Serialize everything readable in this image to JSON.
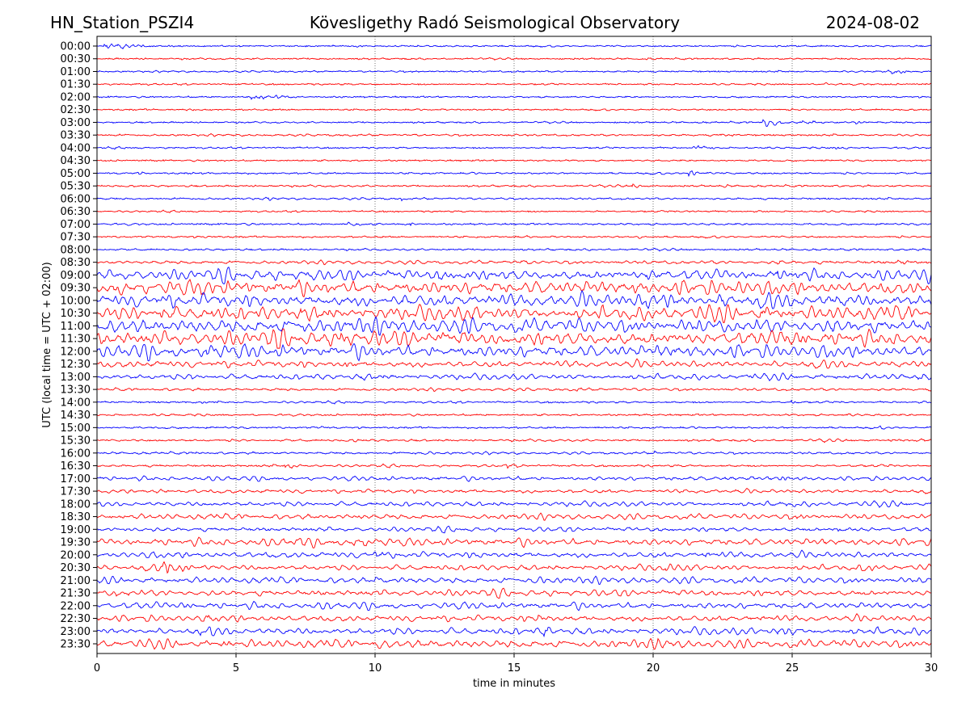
{
  "header": {
    "station": "HN_Station_PSZI4",
    "observatory": "Kövesligethy Radó Seismological Observatory",
    "date": "2024-08-02"
  },
  "chart_data": {
    "type": "line",
    "title": "Kövesligethy Radó Seismological Observatory",
    "xlabel": "time in minutes",
    "ylabel": "UTC (local time = UTC + 02:00)",
    "xlim": [
      0,
      30
    ],
    "xticks": [
      "0",
      "5",
      "10",
      "15",
      "20",
      "25",
      "30"
    ],
    "grid": "vertical dotted at every 5 minutes",
    "colors": {
      "even": "#0000ff",
      "odd": "#ff0000"
    },
    "rows": [
      {
        "label": "00:00",
        "noise": 0.3,
        "events": [
          [
            0.3,
            6,
            1.0
          ],
          [
            24.3,
            2,
            0.5
          ]
        ]
      },
      {
        "label": "00:30",
        "noise": 0.3,
        "events": [
          [
            19.5,
            2,
            1.0
          ],
          [
            24.5,
            1,
            0.6
          ]
        ]
      },
      {
        "label": "01:00",
        "noise": 0.3,
        "events": [
          [
            19.5,
            1,
            0.5
          ],
          [
            28.6,
            7,
            0.8
          ]
        ]
      },
      {
        "label": "01:30",
        "noise": 0.3,
        "events": [
          [
            26.2,
            1.5,
            0.4
          ]
        ]
      },
      {
        "label": "02:00",
        "noise": 0.3,
        "events": [
          [
            5.6,
            5,
            1.5
          ],
          [
            14.2,
            1,
            0.3
          ]
        ]
      },
      {
        "label": "02:30",
        "noise": 0.3,
        "events": [
          [
            3.2,
            1,
            0.4
          ]
        ]
      },
      {
        "label": "03:00",
        "noise": 0.3,
        "events": [
          [
            14.5,
            1.2,
            0.8
          ],
          [
            24.0,
            7,
            1.5
          ],
          [
            27.3,
            1.5,
            0.5
          ]
        ]
      },
      {
        "label": "03:30",
        "noise": 0.4,
        "events": [
          [
            5.8,
            1.5,
            1.0
          ],
          [
            14.5,
            1.5,
            0.6
          ],
          [
            22.5,
            1.5,
            1.0
          ]
        ]
      },
      {
        "label": "04:00",
        "noise": 0.3,
        "events": [
          [
            21.5,
            3,
            1.0
          ],
          [
            26.5,
            3,
            0.8
          ]
        ]
      },
      {
        "label": "04:30",
        "noise": 0.3,
        "events": [
          [
            4.6,
            1,
            0.3
          ],
          [
            26.0,
            2,
            0.3
          ]
        ]
      },
      {
        "label": "05:00",
        "noise": 0.4,
        "events": [
          [
            1.5,
            1.5,
            0.5
          ],
          [
            3.5,
            2,
            0.7
          ],
          [
            21.3,
            4,
            0.6
          ]
        ]
      },
      {
        "label": "05:30",
        "noise": 0.4,
        "events": [
          [
            19.3,
            2,
            0.5
          ],
          [
            22.6,
            1.5,
            0.3
          ]
        ]
      },
      {
        "label": "06:00",
        "noise": 0.4,
        "events": [
          [
            6.2,
            2,
            0.2
          ],
          [
            11.0,
            1.5,
            0.2
          ]
        ]
      },
      {
        "label": "06:30",
        "noise": 0.3,
        "events": [
          [
            20.8,
            1.2,
            1.0
          ]
        ]
      },
      {
        "label": "07:00",
        "noise": 0.4,
        "events": [
          [
            1.1,
            1.5,
            0.3
          ],
          [
            9.0,
            3,
            1.0
          ],
          [
            11.3,
            3,
            0.4
          ],
          [
            20.5,
            3,
            0.4
          ]
        ]
      },
      {
        "label": "07:30",
        "noise": 0.4,
        "events": [
          [
            3.9,
            2,
            0.3
          ],
          [
            15.5,
            1.5,
            0.3
          ],
          [
            19.5,
            2,
            0.5
          ]
        ]
      },
      {
        "label": "08:00",
        "noise": 0.4,
        "events": [
          [
            26.7,
            2,
            0.3
          ],
          [
            28.8,
            2.5,
            0.4
          ]
        ]
      },
      {
        "label": "08:30",
        "noise": 0.8,
        "events": [
          [
            9.5,
            2,
            0.3
          ],
          [
            15.3,
            2,
            0.3
          ],
          [
            24.5,
            2,
            0.6
          ],
          [
            28.8,
            3,
            1.0
          ]
        ]
      },
      {
        "label": "09:00",
        "noise": 2.5,
        "events": [
          [
            7.6,
            4,
            0.8
          ],
          [
            12.2,
            5,
            1.0
          ],
          [
            19.8,
            5,
            1.0
          ],
          [
            24.5,
            6,
            1.0
          ],
          [
            29.8,
            5,
            0.5
          ]
        ]
      },
      {
        "label": "09:30",
        "noise": 3.5,
        "events": [
          [
            0.6,
            7,
            1.2
          ],
          [
            3.8,
            7,
            2.0
          ],
          [
            7.0,
            6,
            1.0
          ],
          [
            12.0,
            7,
            0.5
          ],
          [
            19.3,
            4,
            1.0
          ],
          [
            22.5,
            5,
            1.0
          ]
        ]
      },
      {
        "label": "10:00",
        "noise": 3.5,
        "events": [
          [
            11.0,
            5,
            1.0
          ],
          [
            19.8,
            6,
            1.5
          ],
          [
            22.5,
            7,
            1.0
          ],
          [
            26.5,
            5,
            1.0
          ]
        ]
      },
      {
        "label": "10:30",
        "noise": 3.5,
        "events": [
          [
            2.3,
            7,
            0.8
          ],
          [
            4.2,
            5,
            1.0
          ],
          [
            7.4,
            8,
            0.8
          ],
          [
            23.8,
            5,
            1.0
          ],
          [
            26.9,
            5,
            0.8
          ]
        ]
      },
      {
        "label": "11:00",
        "noise": 3.5,
        "events": [
          [
            0.5,
            5,
            0.8
          ],
          [
            7.4,
            6,
            0.8
          ],
          [
            26.5,
            5,
            0.8
          ]
        ]
      },
      {
        "label": "11:30",
        "noise": 3.5,
        "events": [
          [
            8.8,
            4,
            0.8
          ],
          [
            10.7,
            5,
            2.0
          ],
          [
            23.5,
            6,
            2.0
          ],
          [
            24.8,
            7,
            0.8
          ]
        ]
      },
      {
        "label": "12:00",
        "noise": 3.2,
        "events": [
          [
            4.0,
            6,
            1.0
          ],
          [
            6.6,
            4,
            1.0
          ],
          [
            19.8,
            5,
            1.0
          ]
        ]
      },
      {
        "label": "12:30",
        "noise": 1.8,
        "events": [
          [
            9.0,
            5,
            0.6
          ],
          [
            28.3,
            3,
            1.0
          ]
        ]
      },
      {
        "label": "13:00",
        "noise": 1.4,
        "events": [
          [
            3.3,
            3,
            1.0
          ],
          [
            9.6,
            3,
            1.0
          ],
          [
            23.5,
            3,
            0.5
          ],
          [
            29.6,
            4,
            0.5
          ]
        ]
      },
      {
        "label": "13:30",
        "noise": 0.6,
        "events": [
          [
            17.2,
            2,
            0.3
          ]
        ]
      },
      {
        "label": "14:00",
        "noise": 0.4,
        "events": [
          [
            3.5,
            1.5,
            1.0
          ],
          [
            25.0,
            3,
            0.2
          ],
          [
            26.8,
            2,
            0.2
          ]
        ]
      },
      {
        "label": "14:30",
        "noise": 0.4,
        "events": [
          [
            0.9,
            1,
            0.2
          ],
          [
            27.0,
            1,
            0.8
          ]
        ]
      },
      {
        "label": "15:00",
        "noise": 0.4,
        "events": [
          [
            8.1,
            1.2,
            0.2
          ],
          [
            28.0,
            2,
            0.6
          ]
        ]
      },
      {
        "label": "15:30",
        "noise": 0.5,
        "events": [
          [
            9.2,
            2,
            0.5
          ],
          [
            26.1,
            2,
            0.3
          ],
          [
            28.5,
            2.5,
            1.0
          ]
        ]
      },
      {
        "label": "16:00",
        "noise": 0.5,
        "events": [
          [
            3.6,
            2,
            0.3
          ],
          [
            11.5,
            2,
            1.0
          ],
          [
            20.1,
            2,
            0.3
          ]
        ]
      },
      {
        "label": "16:30",
        "noise": 0.5,
        "events": [
          [
            6.8,
            5,
            0.5
          ],
          [
            14.8,
            5,
            0.4
          ],
          [
            28.5,
            2,
            0.3
          ]
        ]
      },
      {
        "label": "17:00",
        "noise": 1.0,
        "events": [
          [
            24.5,
            2,
            1.0
          ]
        ]
      },
      {
        "label": "17:30",
        "noise": 1.0,
        "events": [
          [
            2.2,
            3,
            1.0
          ]
        ]
      },
      {
        "label": "18:00",
        "noise": 1.2,
        "events": [
          [
            7.6,
            2,
            0.5
          ],
          [
            24.6,
            3,
            0.5
          ]
        ]
      },
      {
        "label": "18:30",
        "noise": 1.3,
        "events": [
          [
            9.3,
            2,
            0.8
          ],
          [
            25.2,
            2,
            0.5
          ]
        ]
      },
      {
        "label": "19:00",
        "noise": 1.0,
        "events": [
          [
            1.0,
            2,
            1.0
          ],
          [
            26.7,
            5,
            0.8
          ]
        ]
      },
      {
        "label": "19:30",
        "noise": 1.8,
        "events": [
          [
            7.0,
            4,
            1.2
          ],
          [
            9.2,
            5,
            1.5
          ]
        ]
      },
      {
        "label": "20:00",
        "noise": 1.6,
        "events": [
          [
            5.9,
            3,
            0.5
          ],
          [
            10.0,
            4,
            1.5
          ],
          [
            13.6,
            4,
            0.5
          ],
          [
            21.8,
            3,
            1.0
          ]
        ]
      },
      {
        "label": "20:30",
        "noise": 1.4,
        "events": [
          [
            2.4,
            10,
            1.0
          ],
          [
            20.5,
            3,
            1.5
          ],
          [
            27.5,
            3,
            1.0
          ]
        ]
      },
      {
        "label": "21:00",
        "noise": 1.5,
        "events": [
          [
            0.3,
            3,
            1.0
          ],
          [
            10.0,
            8,
            0.6
          ],
          [
            15.5,
            5,
            0.8
          ],
          [
            19.6,
            3,
            0.5
          ]
        ]
      },
      {
        "label": "21:30",
        "noise": 1.5,
        "events": [
          [
            0.6,
            4,
            0.5
          ],
          [
            10.0,
            3,
            0.3
          ],
          [
            15.0,
            3,
            0.3
          ]
        ]
      },
      {
        "label": "22:00",
        "noise": 1.6,
        "events": [
          [
            3.0,
            3,
            1.0
          ],
          [
            8.4,
            3,
            0.3
          ]
        ]
      },
      {
        "label": "22:30",
        "noise": 1.6,
        "events": [
          [
            3.9,
            5,
            0.8
          ],
          [
            15.9,
            5,
            0.5
          ],
          [
            23.4,
            4,
            0.8
          ]
        ]
      },
      {
        "label": "23:00",
        "noise": 1.8,
        "events": [
          [
            1.9,
            3,
            0.3
          ],
          [
            3.8,
            4,
            0.8
          ],
          [
            16.1,
            10,
            0.4
          ],
          [
            24.5,
            4,
            0.8
          ]
        ]
      },
      {
        "label": "23:30",
        "noise": 2.0,
        "events": [
          [
            0.8,
            4,
            0.3
          ],
          [
            4.6,
            5,
            0.6
          ],
          [
            10.0,
            8,
            0.6
          ],
          [
            12.0,
            4,
            0.8
          ],
          [
            20.2,
            6,
            0.5
          ],
          [
            26.3,
            6,
            0.6
          ]
        ]
      }
    ]
  }
}
